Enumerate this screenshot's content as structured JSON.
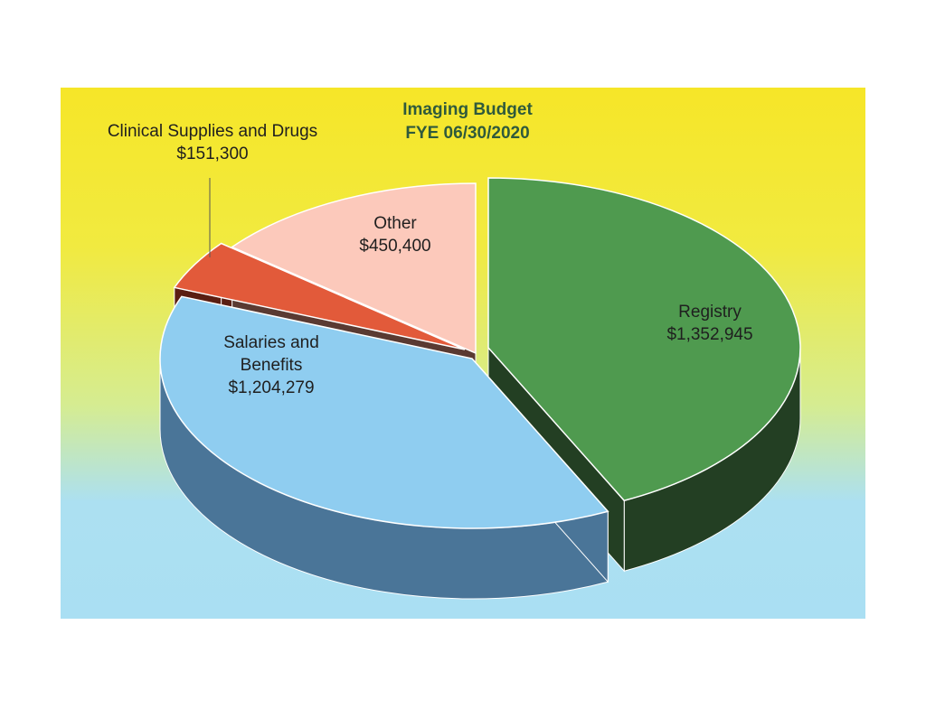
{
  "chart_data": {
    "type": "pie",
    "title": "Imaging Budget",
    "subtitle": "FYE 06/30/2020",
    "slices": [
      {
        "name": "Registry",
        "value": 1352945,
        "value_label": "$1,352,945",
        "color": "#4f9a4f",
        "side_color": "#233f23"
      },
      {
        "name": "Salaries and Benefits",
        "name_lines": [
          "Salaries and",
          "Benefits"
        ],
        "value": 1204279,
        "value_label": "$1,204,279",
        "color": "#8fcdf0",
        "side_color": "#4a7598"
      },
      {
        "name": "Clinical Supplies and Drugs",
        "value": 151300,
        "value_label": "$151,300",
        "color": "#e25a3a",
        "side_color": "#5a1e12"
      },
      {
        "name": "Other",
        "value": 450400,
        "value_label": "$450,400",
        "color": "#fcc9bb",
        "side_color": "#5a3a32"
      }
    ]
  }
}
